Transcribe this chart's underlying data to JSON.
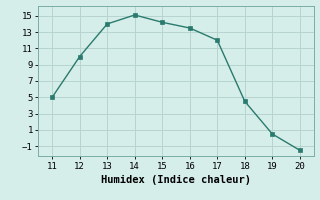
{
  "x": [
    11,
    12,
    13,
    14,
    15,
    16,
    17,
    18,
    19,
    20
  ],
  "y": [
    5,
    10,
    14,
    15.1,
    14.2,
    13.5,
    12,
    4.5,
    0.5,
    -1.5
  ],
  "line_color": "#2a7a6e",
  "marker_color": "#2a7a6e",
  "bg_color": "#d6eeea",
  "grid_color": "#b8d4d0",
  "xlabel": "Humidex (Indice chaleur)",
  "xlim": [
    10.5,
    20.5
  ],
  "ylim": [
    -2.2,
    16.2
  ],
  "xticks": [
    11,
    12,
    13,
    14,
    15,
    16,
    17,
    18,
    19,
    20
  ],
  "yticks": [
    -1,
    1,
    3,
    5,
    7,
    9,
    11,
    13,
    15
  ],
  "tick_fontsize": 6.5,
  "label_fontsize": 7.5
}
